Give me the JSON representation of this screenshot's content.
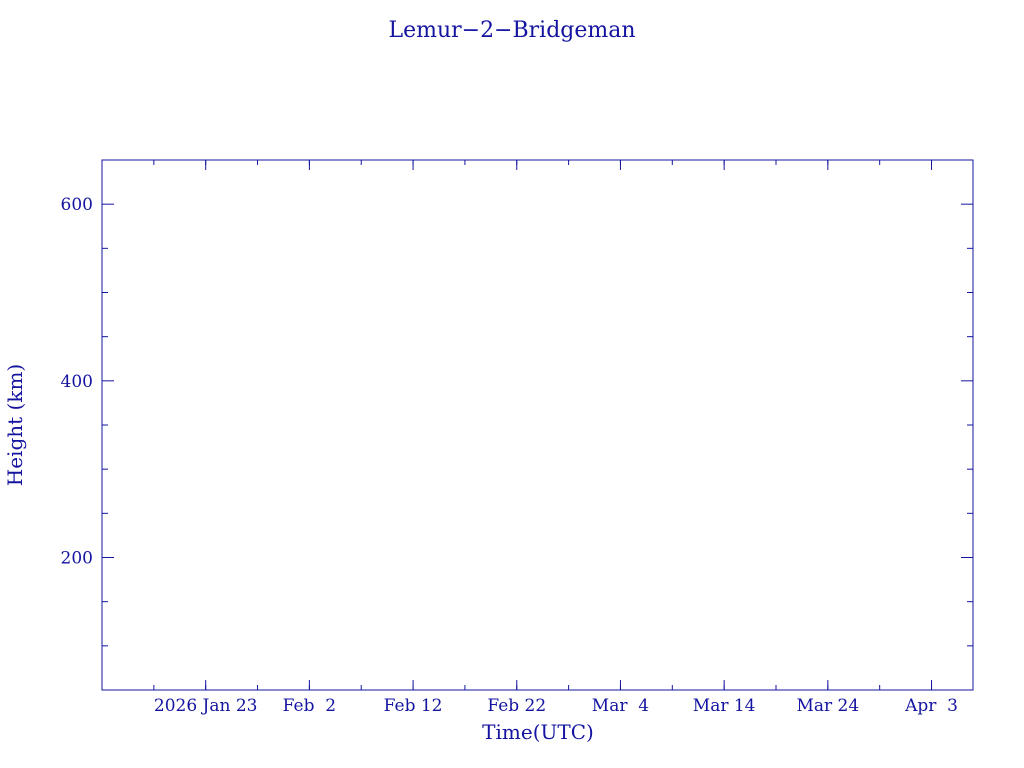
{
  "chart_data": {
    "type": "line",
    "title": "Lemur−2−Bridgeman",
    "xlabel": "Time(UTC)",
    "ylabel": "Height (km)",
    "xlim": [
      "2026-01-13",
      "2026-04-07"
    ],
    "ylim": [
      50,
      650
    ],
    "x_ticks": [
      {
        "date": "2026-01-23",
        "label": "2026 Jan 23"
      },
      {
        "date": "2026-02-02",
        "label": "Feb  2"
      },
      {
        "date": "2026-02-12",
        "label": "Feb 12"
      },
      {
        "date": "2026-02-22",
        "label": "Feb 22"
      },
      {
        "date": "2026-03-04",
        "label": "Mar  4"
      },
      {
        "date": "2026-03-14",
        "label": "Mar 14"
      },
      {
        "date": "2026-03-24",
        "label": "Mar 24"
      },
      {
        "date": "2026-04-03",
        "label": "Apr  3"
      }
    ],
    "x_minor_step_days": 5,
    "y_ticks": [
      200,
      400,
      600
    ],
    "y_minor_step": 50,
    "grid": false,
    "series": [],
    "color": "#1414a0"
  }
}
